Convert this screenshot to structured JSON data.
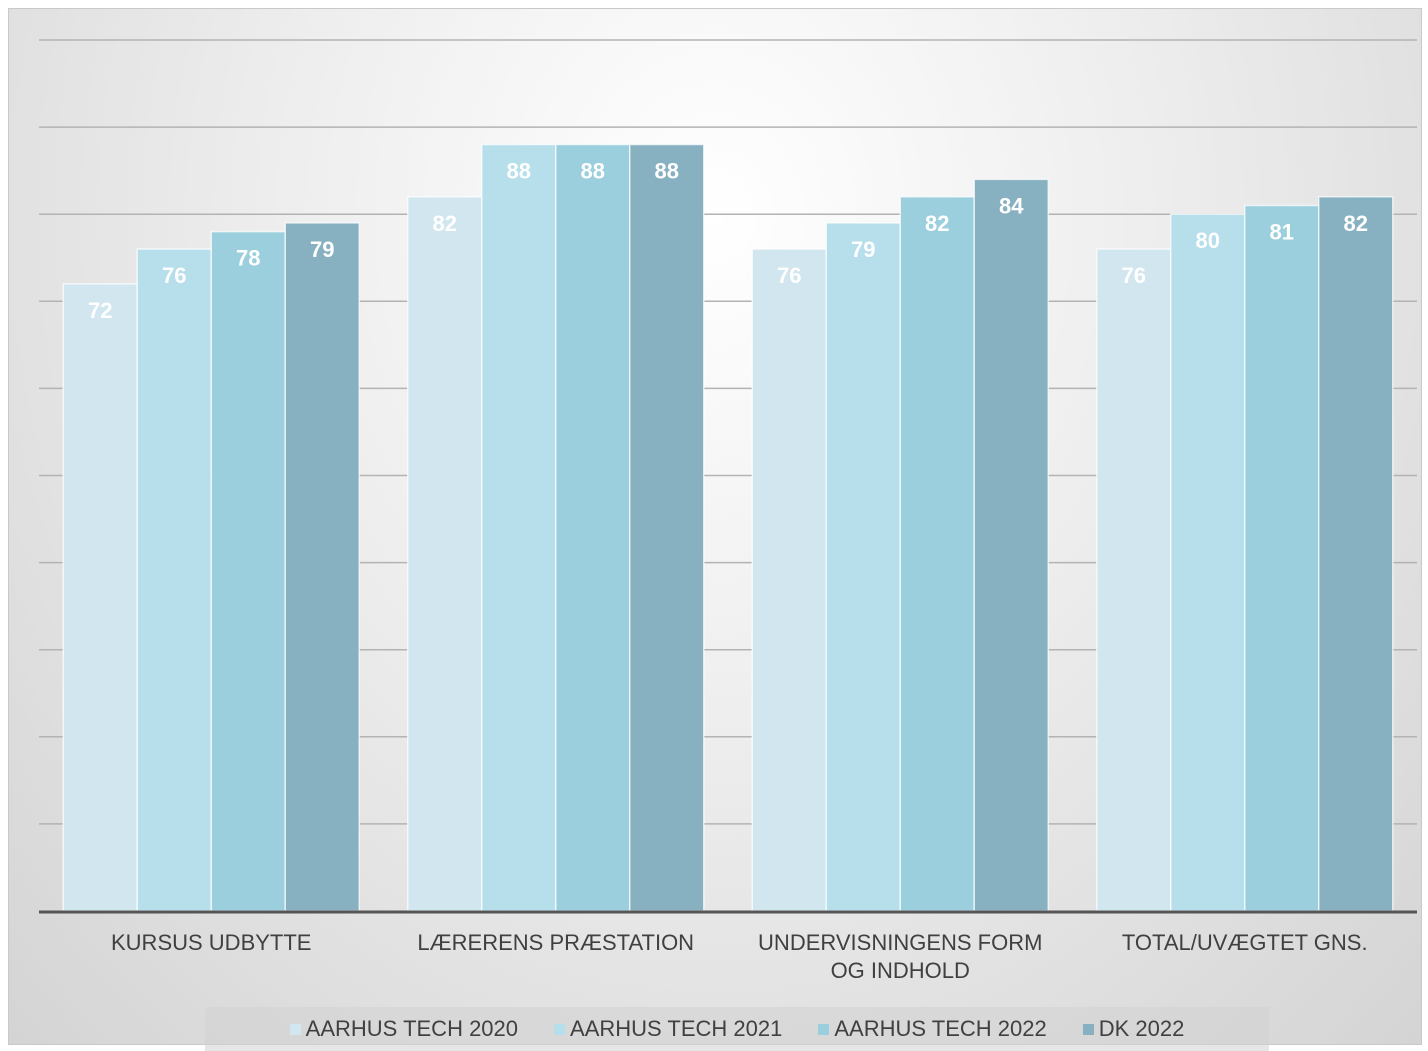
{
  "chart_data": {
    "type": "bar",
    "categories": [
      [
        "KURSUS UDBYTTE"
      ],
      [
        "LÆRERENS PRÆSTATION"
      ],
      [
        "UNDERVISNINGENS FORM",
        "OG INDHOLD"
      ],
      [
        "TOTAL/UVÆGTET GNS."
      ]
    ],
    "series": [
      {
        "name": "AARHUS TECH 2020",
        "color": "#d1e6ee",
        "values": [
          72,
          82,
          76,
          76
        ]
      },
      {
        "name": "AARHUS TECH 2021",
        "color": "#b6deeb",
        "values": [
          76,
          88,
          79,
          80
        ]
      },
      {
        "name": "AARHUS TECH 2022",
        "color": "#9ccfde",
        "values": [
          78,
          88,
          82,
          81
        ]
      },
      {
        "name": "DK 2022",
        "color": "#87b1c1",
        "values": [
          79,
          88,
          84,
          82
        ]
      }
    ],
    "ylim": [
      0,
      100
    ],
    "y_gridline_step": 10,
    "grid": true,
    "data_labels": true,
    "legend_position": "bottom"
  }
}
